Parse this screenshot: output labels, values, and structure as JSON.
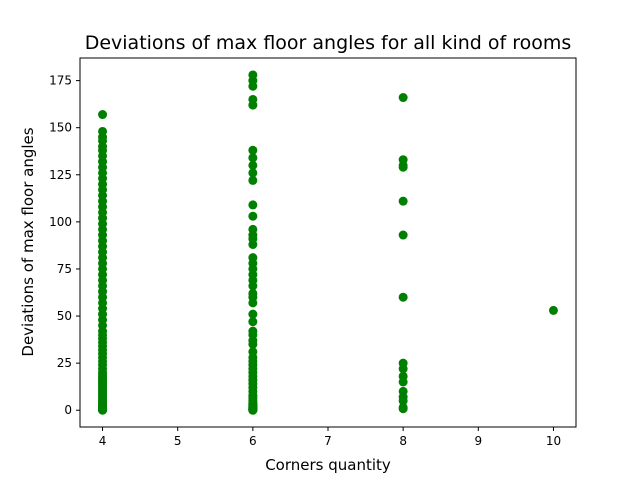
{
  "chart_data": {
    "type": "scatter",
    "title": "Deviations of max floor angles for all kind of rooms",
    "xlabel": "Corners quantity",
    "ylabel": "Deviations of max floor angles",
    "xlim": [
      3.7,
      10.3
    ],
    "ylim": [
      -8.9,
      187
    ],
    "xticks": [
      "4",
      "5",
      "6",
      "7",
      "8",
      "9",
      "10"
    ],
    "yticks": [
      "0",
      "25",
      "50",
      "75",
      "100",
      "125",
      "150",
      "175"
    ],
    "grid": false,
    "marker_color": "#008000",
    "series": [
      {
        "x": [
          4,
          4,
          4,
          4,
          4,
          4,
          4,
          4,
          4,
          4,
          4,
          4,
          4,
          4,
          4,
          4,
          4,
          4,
          4,
          4,
          4,
          4,
          4,
          4,
          4,
          4,
          4,
          4,
          4,
          4,
          4,
          4,
          4,
          4,
          4,
          4,
          4,
          4,
          4,
          4,
          4,
          4,
          4,
          4,
          4,
          4,
          4,
          4,
          4,
          4,
          4,
          4,
          4,
          4,
          4,
          4,
          4,
          4,
          4,
          4,
          4,
          4,
          4,
          4,
          4,
          4,
          4,
          4,
          4,
          4,
          4,
          4,
          4,
          4,
          4,
          4,
          4,
          4,
          4,
          4,
          4,
          4,
          4,
          4,
          6,
          6,
          6,
          6,
          6,
          6,
          6,
          6,
          6,
          6,
          6,
          6,
          6,
          6,
          6,
          6,
          6,
          6,
          6,
          6,
          6,
          6,
          6,
          6,
          6,
          6,
          6,
          6,
          6,
          6,
          6,
          6,
          6,
          6,
          6,
          6,
          6,
          6,
          6,
          6,
          6,
          6,
          6,
          6,
          6,
          6,
          6,
          6,
          6,
          6,
          6,
          6,
          6,
          6,
          6,
          6,
          6,
          6,
          6,
          6,
          6,
          6,
          6,
          6,
          6,
          6,
          8,
          8,
          8,
          8,
          8,
          8,
          8,
          8,
          8,
          8,
          8,
          8,
          8,
          8,
          8,
          8,
          10
        ],
        "y": [
          157,
          148,
          145,
          143,
          140,
          138,
          135,
          132,
          129,
          126,
          123,
          120,
          117,
          114,
          111,
          108,
          105,
          102,
          99,
          96,
          93,
          90,
          87,
          84,
          81,
          78,
          75,
          72,
          69,
          66,
          63,
          60,
          57,
          54,
          51,
          48,
          45,
          42,
          40,
          38,
          36,
          34,
          32,
          30,
          28,
          26,
          24,
          22,
          20,
          19,
          18,
          17,
          16,
          15,
          14,
          13,
          12,
          11,
          10,
          9,
          8,
          7,
          6,
          5,
          4,
          3.5,
          3,
          2.5,
          2,
          1.5,
          1,
          0.8,
          0.6,
          0.4,
          0.2,
          0,
          0.1,
          0.3,
          0.5,
          0.7,
          0.9,
          1.2,
          1.8,
          2.2,
          178,
          175,
          172,
          165,
          162,
          138,
          134,
          130,
          126,
          122,
          109,
          103,
          96,
          93,
          91,
          88,
          81,
          78,
          75,
          72,
          69,
          66,
          62,
          60,
          57,
          51,
          47,
          42,
          40,
          37,
          35,
          31,
          28,
          26,
          24,
          22,
          20,
          18,
          16,
          14,
          12,
          10,
          8,
          7,
          6,
          5,
          4,
          3.5,
          3,
          2.5,
          2,
          1.7,
          1.4,
          1.1,
          0.9,
          0.7,
          0.5,
          0.3,
          0.15,
          0,
          0.05,
          0.25,
          0.45,
          0.65,
          1.3,
          2.7,
          166,
          133,
          130,
          129,
          111,
          93,
          60,
          25,
          22,
          18,
          15,
          10,
          7,
          5,
          1.5,
          0.8,
          53
        ]
      }
    ]
  }
}
